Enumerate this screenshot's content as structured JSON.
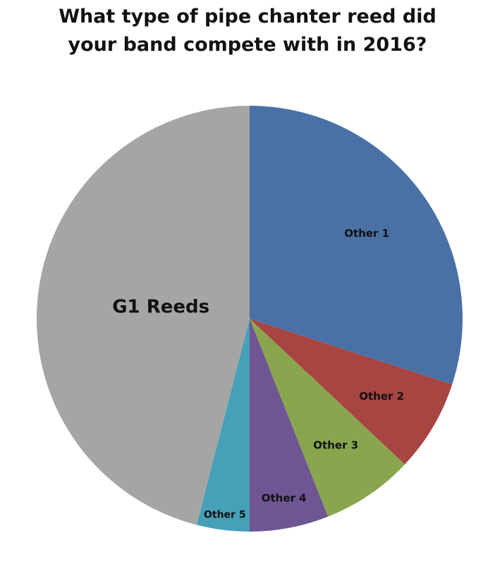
{
  "chart_data": {
    "type": "pie",
    "title": "What type of pipe chanter reed did your band compete with in 2016?",
    "categories": [
      "Other 1",
      "Other 2",
      "Other 3",
      "Other 4",
      "Other 5",
      "G1 Reeds"
    ],
    "values": [
      30,
      7,
      7,
      6,
      4,
      46
    ],
    "colors": [
      "#4a71a5",
      "#a74543",
      "#89a54e",
      "#6f5593",
      "#45a0b8",
      "#a5a5a5"
    ]
  }
}
